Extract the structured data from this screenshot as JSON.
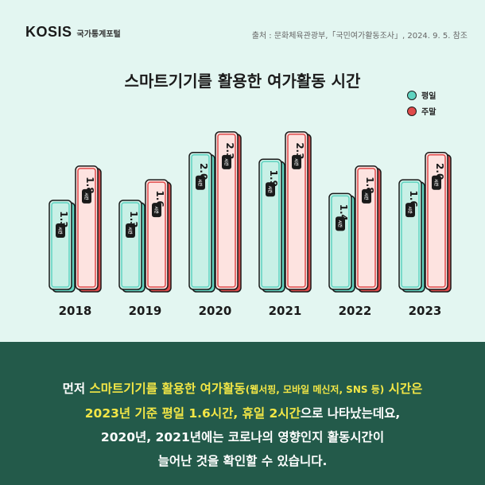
{
  "header": {
    "logo_mark": "KOSIS",
    "logo_text": "국가통계포털",
    "source": "출처 : 문화체육관광부,「국민여가활동조사」, 2024. 9. 5. 참조"
  },
  "chart_data": {
    "type": "bar",
    "title": "스마트기기를 활용한 여가활동 시간",
    "categories": [
      "2018",
      "2019",
      "2020",
      "2021",
      "2022",
      "2023"
    ],
    "unit": "시간",
    "series": [
      {
        "name": "평일",
        "values": [
          1.3,
          1.3,
          2.0,
          1.9,
          1.4,
          1.6
        ],
        "color": "#5fd3c0",
        "fill": "#c8f0e6"
      },
      {
        "name": "주말",
        "values": [
          1.8,
          1.6,
          2.3,
          2.3,
          1.8,
          2.0
        ],
        "color": "#e04b4b",
        "fill": "#fde3e0"
      }
    ],
    "ylim": [
      0,
      2.6
    ],
    "legend_position": "top-right",
    "grid": false
  },
  "caption": {
    "line1_pre": "먼저 ",
    "line1_hl": "스마트기기를 활용한 여가활동",
    "line1_small": "(웹서핑, 모바일 메신저, SNS 등)",
    "line1_hl2": " 시간은",
    "line2_hl": "2023년 기준 평일 1.6시간, 휴일 2시간",
    "line2_post": "으로 나타났는데요,",
    "line3": "2020년, 2021년에는 코로나의 영향인지 활동시간이",
    "line4": "늘어난 것을 확인할 수 있습니다."
  }
}
